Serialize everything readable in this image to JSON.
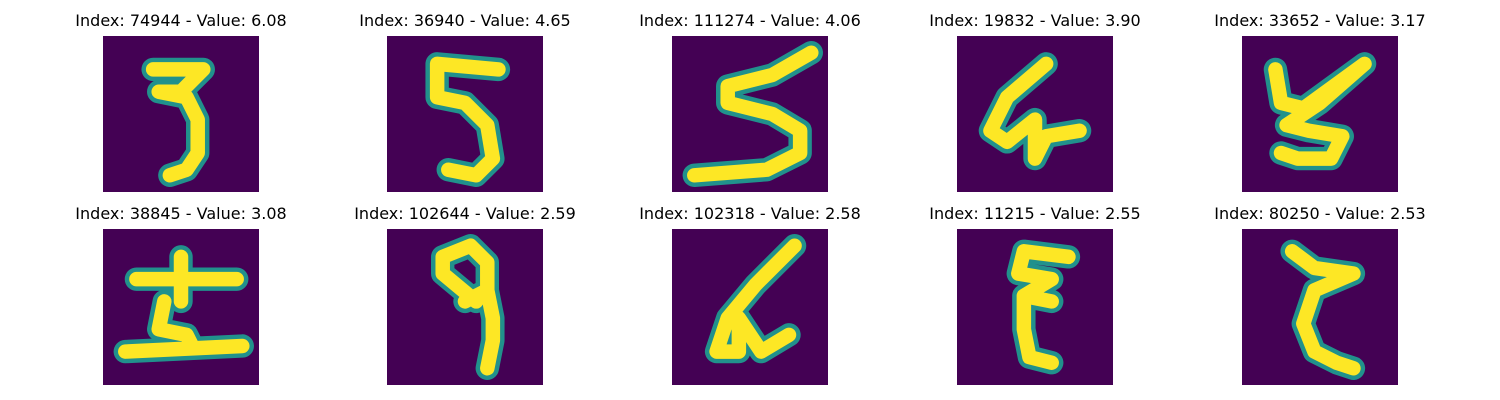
{
  "colors": {
    "background": "#440154",
    "stroke_edge": "#21918c",
    "stroke_core": "#fde725",
    "title": "#000000"
  },
  "panels": [
    {
      "title": "Index: 74944 - Value: 6.08",
      "index": 74944,
      "value": 6.08
    },
    {
      "title": "Index: 36940 - Value: 4.65",
      "index": 36940,
      "value": 4.65
    },
    {
      "title": "Index: 111274 - Value: 4.06",
      "index": 111274,
      "value": 4.06
    },
    {
      "title": "Index: 19832 - Value: 3.90",
      "index": 19832,
      "value": 3.9
    },
    {
      "title": "Index: 33652 - Value: 3.17",
      "index": 33652,
      "value": 3.17
    },
    {
      "title": "Index: 38845 - Value: 3.08",
      "index": 38845,
      "value": 3.08
    },
    {
      "title": "Index: 102644 - Value: 2.59",
      "index": 102644,
      "value": 2.59
    },
    {
      "title": "Index: 102318 - Value: 2.58",
      "index": 102318,
      "value": 2.58
    },
    {
      "title": "Index: 11215 - Value: 2.55",
      "index": 11215,
      "value": 2.55
    },
    {
      "title": "Index: 80250 - Value: 2.53",
      "index": 80250,
      "value": 2.53
    }
  ]
}
